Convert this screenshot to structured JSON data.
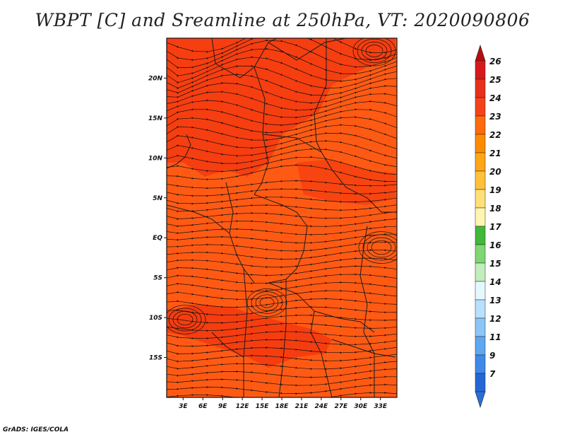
{
  "title": "WBPT [C] and Sreamline at 250hPa, VT: 2020090806",
  "credit": "GrADS: IGES/COLA",
  "map": {
    "lat_labels": [
      "20N",
      "15N",
      "10N",
      "5N",
      "EQ",
      "5S",
      "10S",
      "15S"
    ],
    "lat_values": [
      20,
      15,
      10,
      5,
      0,
      -5,
      -10,
      -15
    ],
    "lon_labels": [
      "3E",
      "6E",
      "9E",
      "12E",
      "15E",
      "18E",
      "21E",
      "24E",
      "27E",
      "30E",
      "33E"
    ],
    "lon_values": [
      3,
      6,
      9,
      12,
      15,
      18,
      21,
      24,
      27,
      30,
      33
    ],
    "lon_range": [
      0.5,
      35.5
    ],
    "lat_range": [
      -20,
      25
    ],
    "dominant_field_color": "#ff5a14",
    "warm_patch_color": "#f43a10",
    "streamline_color": "#111111",
    "border_color": "#1a1a1a"
  },
  "colorbar": {
    "labels": [
      "26",
      "25",
      "24",
      "23",
      "22",
      "21",
      "20",
      "19",
      "18",
      "17",
      "16",
      "15",
      "14",
      "13",
      "12",
      "11",
      "9",
      "7"
    ],
    "colors": [
      "#d7191c",
      "#e8311b",
      "#f5421a",
      "#ff6a0f",
      "#ff8c00",
      "#ffa616",
      "#ffc13a",
      "#ffe07a",
      "#fff5b0",
      "#41b83a",
      "#7fd672",
      "#bfeebb",
      "#e6f8ff",
      "#b8e0ff",
      "#8cc6f6",
      "#5fa8f0",
      "#3d8ae8",
      "#2466d6"
    ],
    "top_arrow_color": "#b50e0e",
    "bottom_arrow_color": "#2a6fd8"
  }
}
